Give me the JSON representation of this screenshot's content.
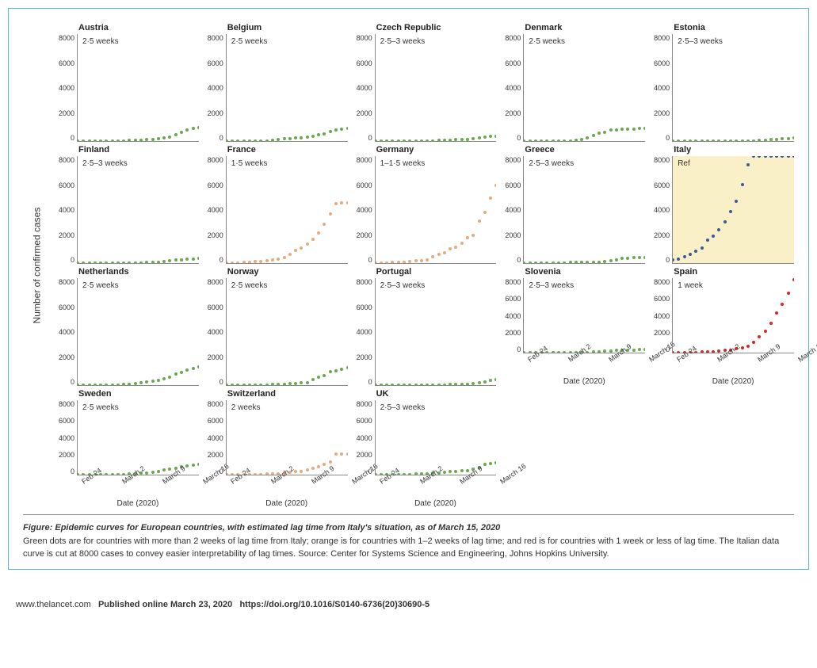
{
  "figure": {
    "ylabel": "Number of confirmed cases",
    "xlabel": "Date (2020)",
    "ylim": [
      0,
      8000
    ],
    "yticks": [
      0,
      2000,
      4000,
      6000,
      8000
    ],
    "xticks": [
      "Feb 24",
      "March 2",
      "March 9",
      "March 16"
    ],
    "n_xpoints": 22,
    "label_fontsize": 12,
    "tick_fontsize": 9,
    "title_fontsize": 11,
    "lag_fontsize": 10,
    "axis_color": "#888888",
    "background_color": "#ffffff",
    "highlight_bg": "#faf0c8",
    "frame_border_color": "#5bb5c7",
    "colors": {
      "green": "#6aa84f",
      "orange": "#e8a97d",
      "red": "#d62728",
      "blue": "#3b5998"
    },
    "panels": [
      {
        "title": "Austria",
        "lag": "2·5 weeks",
        "color": "green",
        "row": 1,
        "col": 1,
        "show_xaxis": false,
        "values": [
          0,
          0,
          2,
          5,
          9,
          14,
          18,
          21,
          29,
          41,
          55,
          79,
          104,
          131,
          182,
          246,
          302,
          504,
          655,
          860,
          959,
          1018
        ]
      },
      {
        "title": "Belgium",
        "lag": "2·5 weeks",
        "color": "green",
        "row": 1,
        "col": 2,
        "show_xaxis": false,
        "values": [
          0,
          1,
          1,
          2,
          2,
          8,
          13,
          23,
          50,
          109,
          169,
          200,
          239,
          267,
          314,
          380,
          460,
          559,
          689,
          815,
          886,
          960
        ]
      },
      {
        "title": "Czech Republic",
        "lag": "2·5–3 weeks",
        "color": "green",
        "row": 1,
        "col": 3,
        "show_xaxis": false,
        "values": [
          0,
          0,
          0,
          0,
          0,
          3,
          5,
          8,
          12,
          19,
          26,
          32,
          41,
          63,
          94,
          116,
          141,
          189,
          253,
          298,
          340,
          380
        ]
      },
      {
        "title": "Denmark",
        "lag": "2·5 weeks",
        "color": "green",
        "row": 1,
        "col": 4,
        "show_xaxis": false,
        "values": [
          0,
          0,
          1,
          2,
          3,
          4,
          6,
          10,
          23,
          35,
          90,
          262,
          442,
          615,
          674,
          801,
          827,
          864,
          875,
          898,
          920,
          940
        ]
      },
      {
        "title": "Estonia",
        "lag": "2·5–3 weeks",
        "color": "green",
        "row": 1,
        "col": 5,
        "show_xaxis": false,
        "values": [
          0,
          0,
          0,
          0,
          0,
          1,
          1,
          2,
          3,
          10,
          10,
          12,
          16,
          17,
          27,
          41,
          79,
          115,
          135,
          171,
          205,
          225
        ]
      },
      {
        "title": "Finland",
        "lag": "2·5–3 weeks",
        "color": "green",
        "row": 2,
        "col": 1,
        "show_xaxis": false,
        "values": [
          0,
          1,
          1,
          2,
          2,
          3,
          6,
          6,
          12,
          15,
          23,
          30,
          40,
          59,
          77,
          109,
          155,
          210,
          244,
          280,
          319,
          350
        ]
      },
      {
        "title": "France",
        "lag": "1·5 weeks",
        "color": "orange",
        "row": 2,
        "col": 2,
        "show_xaxis": false,
        "values": [
          12,
          14,
          18,
          38,
          57,
          100,
          130,
          191,
          212,
          285,
          423,
          653,
          949,
          1126,
          1412,
          1784,
          2281,
          2876,
          3661,
          4469,
          4499,
          4530
        ]
      },
      {
        "title": "Germany",
        "lag": "1–1·5 weeks",
        "color": "orange",
        "row": 2,
        "col": 3,
        "show_xaxis": false,
        "values": [
          16,
          17,
          27,
          46,
          48,
          79,
          130,
          159,
          196,
          262,
          482,
          670,
          799,
          1040,
          1176,
          1457,
          1908,
          2078,
          3156,
          3795,
          4838,
          5813
        ]
      },
      {
        "title": "Greece",
        "lag": "2·5–3 weeks",
        "color": "green",
        "row": 2,
        "col": 4,
        "show_xaxis": false,
        "values": [
          0,
          0,
          1,
          3,
          4,
          7,
          7,
          9,
          31,
          45,
          46,
          66,
          73,
          89,
          99,
          190,
          228,
          331,
          352,
          387,
          418,
          445
        ]
      },
      {
        "title": "Italy",
        "lag": "Ref",
        "color": "blue",
        "row": 2,
        "col": 5,
        "show_xaxis": false,
        "highlight": true,
        "values": [
          229,
          322,
          453,
          655,
          888,
          1128,
          1694,
          2036,
          2502,
          3089,
          3858,
          4636,
          5883,
          7375,
          8000,
          8000,
          8000,
          8000,
          8000,
          8000,
          8000,
          8000
        ]
      },
      {
        "title": "Netherlands",
        "lag": "2·5 weeks",
        "color": "green",
        "row": 3,
        "col": 1,
        "show_xaxis": false,
        "values": [
          0,
          0,
          0,
          1,
          6,
          10,
          18,
          24,
          38,
          82,
          128,
          188,
          265,
          321,
          382,
          503,
          614,
          804,
          959,
          1135,
          1250,
          1350
        ]
      },
      {
        "title": "Norway",
        "lag": "2·5 weeks",
        "color": "green",
        "row": 3,
        "col": 2,
        "show_xaxis": false,
        "values": [
          0,
          0,
          1,
          4,
          6,
          15,
          19,
          25,
          32,
          56,
          87,
          108,
          147,
          176,
          205,
          400,
          598,
          702,
          996,
          1090,
          1190,
          1280
        ]
      },
      {
        "title": "Portugal",
        "lag": "2·5–3 weeks",
        "color": "green",
        "row": 3,
        "col": 3,
        "show_xaxis": false,
        "values": [
          0,
          0,
          0,
          0,
          0,
          0,
          2,
          2,
          5,
          8,
          13,
          21,
          30,
          39,
          41,
          59,
          78,
          112,
          169,
          245,
          331,
          400
        ]
      },
      {
        "title": "Slovenia",
        "lag": "2·5–3 weeks",
        "color": "green",
        "row": 3,
        "col": 4,
        "show_xaxis": true,
        "values": [
          0,
          0,
          0,
          0,
          0,
          0,
          0,
          1,
          6,
          7,
          16,
          31,
          57,
          89,
          141,
          181,
          219,
          253,
          275,
          286,
          300,
          310
        ]
      },
      {
        "title": "Spain",
        "lag": "1 week",
        "color": "red",
        "row": 3,
        "col": 5,
        "show_xaxis": true,
        "values": [
          2,
          6,
          13,
          15,
          32,
          45,
          84,
          120,
          165,
          222,
          259,
          400,
          500,
          673,
          1073,
          1695,
          2277,
          3146,
          4231,
          5232,
          6391,
          7800
        ]
      },
      {
        "title": "Sweden",
        "lag": "2·5 weeks",
        "color": "green",
        "row": 4,
        "col": 1,
        "show_xaxis": true,
        "values": [
          0,
          1,
          2,
          7,
          12,
          14,
          15,
          21,
          35,
          94,
          101,
          161,
          203,
          248,
          355,
          500,
          599,
          687,
          814,
          961,
          1022,
          1090
        ]
      },
      {
        "title": "Switzerland",
        "lag": "2 weeks",
        "color": "orange",
        "row": 4,
        "col": 2,
        "show_xaxis": true,
        "values": [
          0,
          1,
          8,
          8,
          18,
          27,
          42,
          56,
          90,
          114,
          214,
          268,
          337,
          374,
          491,
          652,
          868,
          1139,
          1359,
          2200,
          2200,
          2250
        ]
      },
      {
        "title": "UK",
        "lag": "2·5–3 weeks",
        "color": "green",
        "row": 4,
        "col": 3,
        "show_xaxis": true,
        "values": [
          9,
          13,
          13,
          20,
          23,
          36,
          40,
          51,
          85,
          115,
          163,
          206,
          273,
          321,
          373,
          456,
          456,
          590,
          797,
          1140,
          1200,
          1280
        ]
      }
    ]
  },
  "caption": {
    "prefix": "Figure",
    "title": "Epidemic curves for European countries, with estimated lag time from Italy's situation, as of March 15, 2020",
    "body": "Green dots are for countries with more than 2 weeks of lag time from Italy; orange is for countries with 1–2 weeks of lag time; and red is for countries with 1 week or less of lag time. The Italian data curve is cut at 8000 cases to convey easier interpretability of lag times. Source: Center for Systems Science and Engineering, Johns Hopkins University."
  },
  "footer": {
    "site": "www.thelancet.com",
    "pub": "Published online March 23, 2020",
    "doi": "https://doi.org/10.1016/S0140-6736(20)30690-5"
  }
}
